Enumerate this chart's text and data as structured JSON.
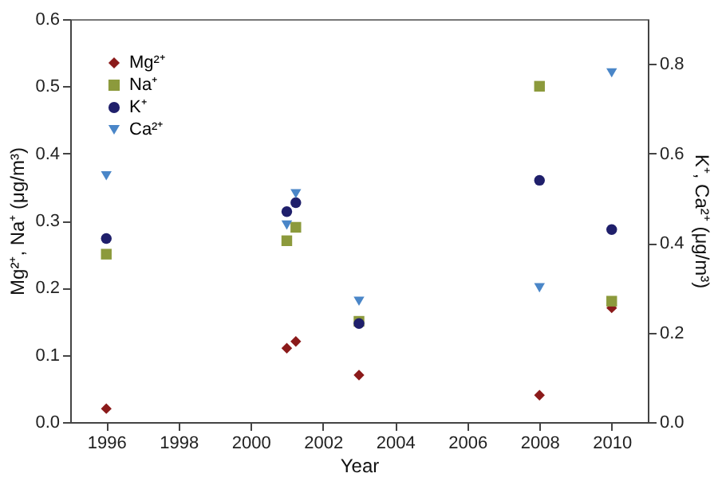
{
  "chart_data": {
    "type": "scatter",
    "xlabel": "Year",
    "ylabel": "Mg²⁺, Na⁺ (μg/m³)",
    "y2label": "K⁺, Ca²⁺ (μg/m³)",
    "x": [
      1996,
      2001,
      2001.25,
      2003,
      2008,
      2010
    ],
    "series": [
      {
        "name": "Mg²⁺",
        "color": "#8b1a1a",
        "marker": "diamond",
        "values": [
          0.02,
          0.11,
          0.12,
          0.07,
          0.04,
          0.17
        ]
      },
      {
        "name": "Na⁺",
        "color": "#8c9a3c",
        "marker": "square",
        "values": [
          0.25,
          0.27,
          0.29,
          0.15,
          0.5,
          0.18
        ]
      },
      {
        "name": "K⁺",
        "color": "#1f1f6b",
        "marker": "circle",
        "axis": "y2",
        "values": [
          0.41,
          0.47,
          0.49,
          0.22,
          0.54,
          0.43
        ]
      },
      {
        "name": "Ca²⁺",
        "color": "#4a86c8",
        "marker": "triangle",
        "axis": "y2",
        "values": [
          0.55,
          0.44,
          0.51,
          0.27,
          0.3,
          0.78
        ]
      }
    ],
    "xlim": [
      1995,
      2011
    ],
    "xticks": [
      1996,
      1998,
      2000,
      2002,
      2004,
      2006,
      2008,
      2010
    ],
    "ylim": [
      0,
      0.6
    ],
    "yticks": [
      {
        "value": 0,
        "label": "0.0"
      },
      0.1,
      0.2,
      0.3,
      0.4,
      0.5,
      0.6
    ],
    "y2lim": [
      0,
      0.9
    ],
    "y2ticks": [
      {
        "value": 0,
        "label": "0.0"
      },
      0.2,
      0.4,
      0.6,
      0.8
    ],
    "grid": false,
    "legend": "top left"
  }
}
